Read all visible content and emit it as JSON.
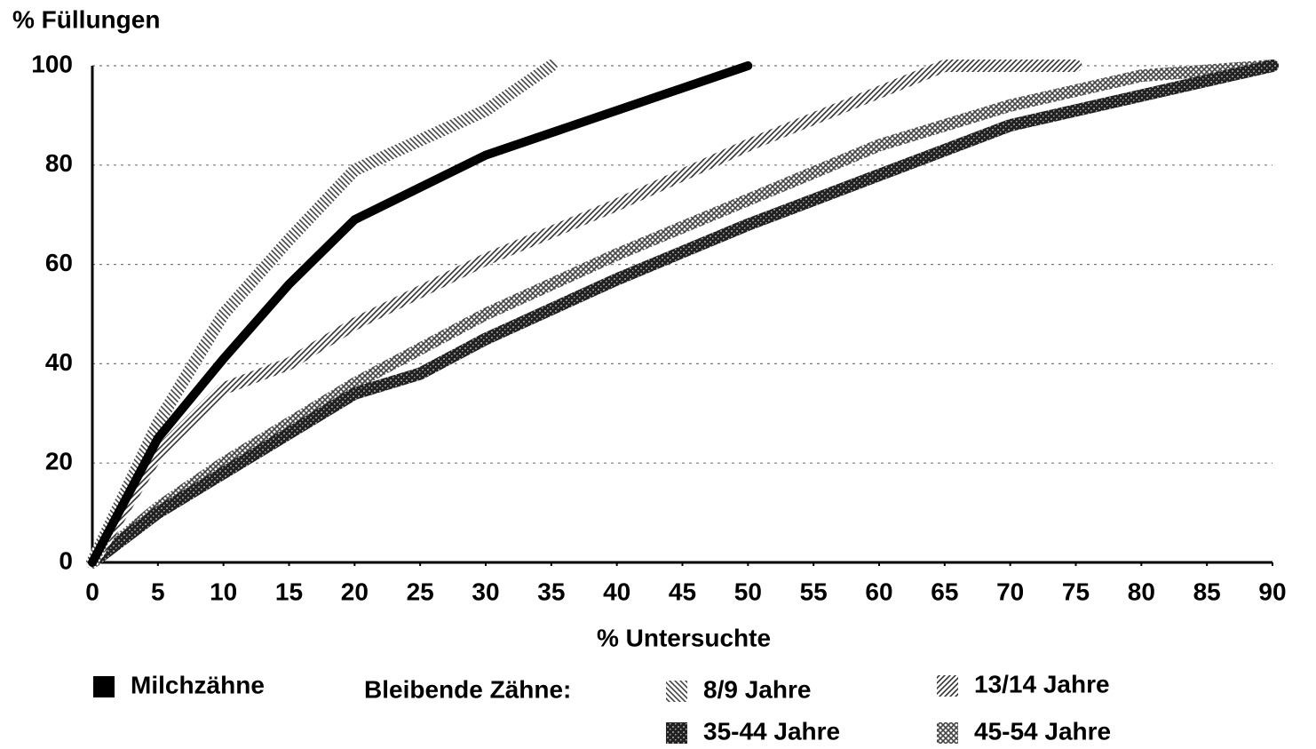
{
  "chart_data": {
    "type": "line",
    "title": "% Füllungen",
    "xlabel": "% Untersuchte",
    "legend_group_label": "Bleibende Zähne:",
    "xlim": [
      0,
      90
    ],
    "xticks": [
      0,
      5,
      10,
      15,
      20,
      25,
      30,
      35,
      40,
      45,
      50,
      55,
      60,
      65,
      70,
      75,
      80,
      85,
      90
    ],
    "ylim": [
      0,
      100
    ],
    "yticks": [
      0,
      20,
      40,
      60,
      80,
      100
    ],
    "grid": true,
    "series": [
      {
        "name": "Milchzähne",
        "color": "#000000",
        "pattern": "solid",
        "x": [
          0,
          5,
          10,
          15,
          20,
          30,
          50
        ],
        "values": [
          0,
          25,
          41,
          56,
          69,
          82,
          100
        ]
      },
      {
        "name": "8/9 Jahre",
        "color": "#444444",
        "pattern": "backslash",
        "x": [
          0,
          5,
          10,
          15,
          20,
          30,
          35
        ],
        "values": [
          0,
          28,
          50,
          65,
          79,
          91,
          100
        ]
      },
      {
        "name": "13/14 Jahre",
        "color": "#333333",
        "pattern": "slash",
        "x": [
          0,
          5,
          10,
          15,
          20,
          30,
          40,
          50,
          65,
          75
        ],
        "values": [
          0,
          22,
          35,
          40,
          48,
          61,
          72,
          84,
          100,
          100
        ]
      },
      {
        "name": "35-44 Jahre",
        "color": "#222222",
        "pattern": "dense",
        "x": [
          0,
          5,
          10,
          15,
          20,
          25,
          30,
          40,
          50,
          60,
          70,
          80,
          90
        ],
        "values": [
          0,
          10,
          18,
          26,
          34,
          38,
          45,
          57,
          68,
          78,
          88,
          94,
          100
        ]
      },
      {
        "name": "45-54 Jahre",
        "color": "#444444",
        "pattern": "cross",
        "x": [
          0,
          5,
          10,
          15,
          20,
          30,
          40,
          50,
          60,
          70,
          80,
          90
        ],
        "values": [
          0,
          11,
          20,
          28,
          36,
          50,
          62,
          73,
          84,
          92,
          98,
          100
        ]
      }
    ]
  }
}
